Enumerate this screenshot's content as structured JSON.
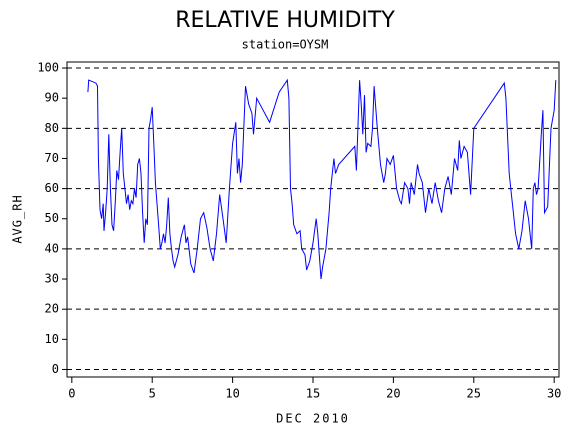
{
  "chart_data": {
    "type": "line",
    "title": "RELATIVE HUMIDITY",
    "subtitle": "station=OYSM",
    "x_label": "DEC 2010",
    "y_label": "AVG_RH",
    "xlim": [
      -0.3,
      30.3
    ],
    "ylim": [
      -2.5,
      102
    ],
    "xticks": [
      0,
      5,
      10,
      15,
      20,
      25,
      30
    ],
    "yticks": [
      0,
      10,
      20,
      30,
      40,
      50,
      60,
      70,
      80,
      90,
      100
    ],
    "grid": true,
    "series": [
      {
        "color": "#0000ff",
        "x": [
          1.0,
          1.05,
          1.5,
          1.6,
          1.65,
          1.75,
          1.85,
          1.95,
          2.0,
          2.1,
          2.2,
          2.3,
          2.4,
          2.5,
          2.6,
          2.7,
          2.8,
          2.9,
          3.0,
          3.1,
          3.2,
          3.3,
          3.4,
          3.5,
          3.6,
          3.7,
          3.8,
          3.9,
          4.0,
          4.1,
          4.2,
          4.3,
          4.4,
          4.5,
          4.6,
          4.7,
          4.8,
          4.9,
          5.0,
          5.1,
          5.2,
          5.3,
          5.4,
          5.5,
          5.6,
          5.7,
          5.8,
          5.9,
          6.0,
          6.1,
          6.2,
          6.3,
          6.4,
          6.5,
          6.6,
          6.8,
          7.0,
          7.1,
          7.2,
          7.4,
          7.6,
          7.8,
          8.0,
          8.2,
          8.4,
          8.6,
          8.8,
          9.0,
          9.2,
          9.4,
          9.6,
          9.8,
          10.0,
          10.2,
          10.3,
          10.4,
          10.5,
          10.6,
          10.8,
          11.0,
          11.2,
          11.3,
          11.5,
          12.3,
          12.9,
          13.4,
          13.5,
          13.6,
          13.7,
          13.8,
          14.0,
          14.2,
          14.3,
          14.5,
          14.6,
          14.8,
          15.0,
          15.2,
          15.3,
          15.5,
          15.6,
          15.8,
          16.0,
          16.1,
          16.3,
          16.4,
          16.6,
          17.6,
          17.7,
          17.9,
          18.0,
          18.1,
          18.2,
          18.3,
          18.4,
          18.6,
          18.7,
          18.8,
          19.0,
          19.2,
          19.4,
          19.5,
          19.6,
          19.8,
          20.0,
          20.2,
          20.4,
          20.5,
          20.7,
          20.9,
          21.0,
          21.1,
          21.3,
          21.5,
          21.6,
          21.8,
          22.0,
          22.2,
          22.4,
          22.6,
          22.8,
          23.0,
          23.2,
          23.4,
          23.6,
          23.8,
          24.0,
          24.1,
          24.2,
          24.4,
          24.6,
          24.8,
          25.0,
          26.9,
          27.0,
          27.2,
          27.4,
          27.6,
          27.8,
          28.0,
          28.2,
          28.4,
          28.6,
          28.7,
          28.8,
          28.9,
          29.0,
          29.2,
          29.3,
          29.4,
          29.6,
          29.8,
          30.0,
          30.1
        ],
        "values": [
          92,
          96,
          95,
          94,
          70,
          53,
          50,
          55,
          46,
          52,
          60,
          78,
          60,
          48,
          46,
          55,
          66,
          63,
          72,
          80,
          65,
          60,
          55,
          58,
          53,
          56,
          55,
          60,
          57,
          68,
          70,
          65,
          52,
          42,
          50,
          48,
          80,
          83,
          87,
          75,
          62,
          55,
          48,
          40,
          42,
          45,
          42,
          48,
          57,
          45,
          40,
          36,
          34,
          36,
          38,
          44,
          48,
          42,
          44,
          35,
          32,
          40,
          50,
          52,
          47,
          40,
          36,
          45,
          58,
          50,
          42,
          60,
          75,
          82,
          65,
          70,
          62,
          68,
          94,
          88,
          85,
          78,
          90,
          82,
          92,
          96,
          90,
          60,
          55,
          48,
          45,
          46,
          40,
          38,
          33,
          36,
          42,
          50,
          45,
          30,
          34,
          40,
          52,
          60,
          70,
          65,
          68,
          74,
          66,
          96,
          88,
          78,
          91,
          72,
          75,
          74,
          80,
          94,
          80,
          68,
          62,
          65,
          70,
          68,
          71,
          60,
          56,
          55,
          62,
          60,
          55,
          62,
          58,
          68,
          65,
          62,
          52,
          60,
          55,
          62,
          56,
          52,
          60,
          64,
          58,
          70,
          66,
          76,
          70,
          74,
          72,
          58,
          80,
          95,
          90,
          65,
          55,
          45,
          40,
          46,
          56,
          50,
          40,
          60,
          62,
          58,
          60,
          78,
          86,
          52,
          54,
          80,
          86,
          96
        ]
      }
    ]
  }
}
